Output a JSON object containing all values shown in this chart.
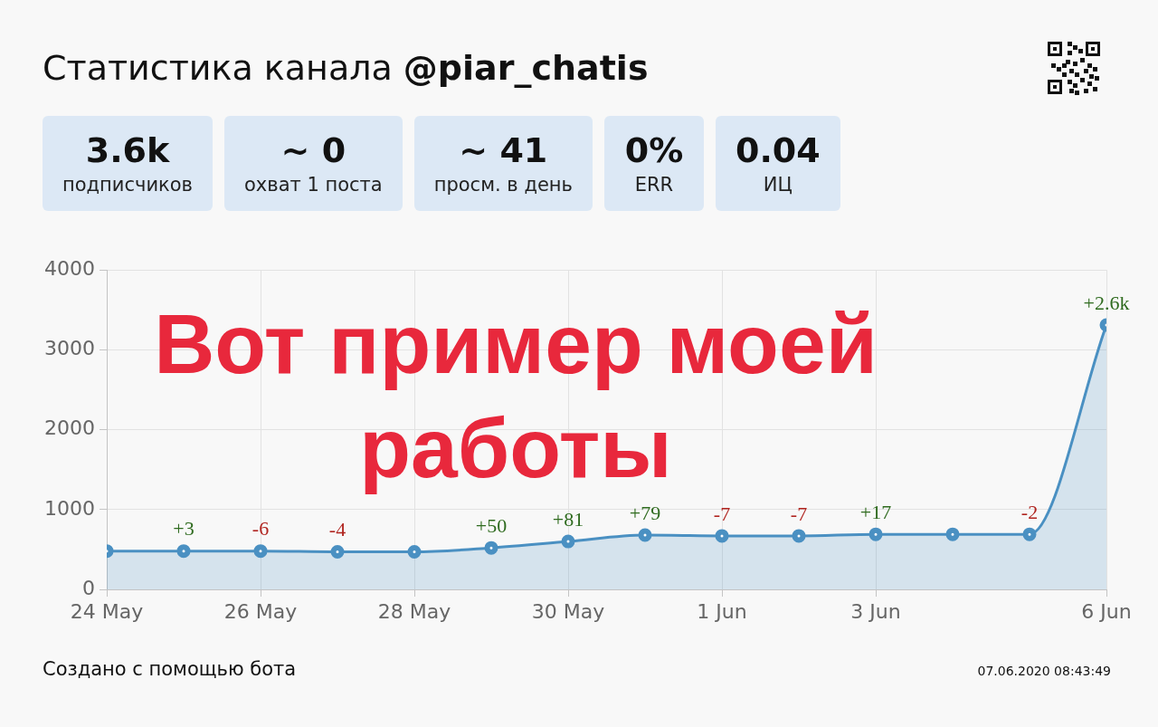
{
  "chart_data": [
    {
      "type": "other",
      "title": "Статистика канала @piar_chatis",
      "annotations": [
        "3.6k",
        "подписчиков",
        "~ 0",
        "охват 1 поста",
        "~ 41",
        "просм. в день",
        "0%",
        "ERR",
        "0.04",
        "ИЦ"
      ]
    },
    {
      "type": "area",
      "x": [
        "2020-05-24",
        "2020-05-25",
        "2020-05-26",
        "2020-05-27",
        "2020-05-28",
        "2020-05-29",
        "2020-05-30",
        "2020-05-31",
        "2020-06-01",
        "2020-06-02",
        "2020-06-03",
        "2020-06-04",
        "2020-06-05",
        "2020-06-06"
      ],
      "values": [
        480,
        480,
        480,
        470,
        470,
        520,
        600,
        680,
        670,
        670,
        690,
        690,
        690,
        3310
      ],
      "color": "#4a90c2",
      "marker": "circle",
      "grid": true,
      "xlim": [
        "2020-05-24",
        "2020-06-06"
      ],
      "xticks": [
        {
          "value": "2020-05-24",
          "label": "24 May"
        },
        {
          "value": "2020-05-26",
          "label": "26 May"
        },
        {
          "value": "2020-05-28",
          "label": "28 May"
        },
        {
          "value": "2020-05-30",
          "label": "30 May"
        },
        {
          "value": "2020-06-01",
          "label": "1 Jun"
        },
        {
          "value": "2020-06-03",
          "label": "3 Jun"
        },
        {
          "value": "2020-06-06",
          "label": "6 Jun"
        }
      ],
      "ylim": [
        0,
        4000
      ],
      "yticks": [
        0,
        1000,
        2000,
        3000,
        4000
      ],
      "annotations": [
        "Вот пример моей работы",
        "Создано с помощью бота",
        "07.06.2020 08:43:49",
        {
          "text": "+3",
          "x": "2020-05-25",
          "y": 480
        },
        {
          "text": "-6",
          "x": "2020-05-26",
          "y": 480
        },
        {
          "text": "-4",
          "x": "2020-05-27",
          "y": 470
        },
        {
          "text": "+50",
          "x": "2020-05-29",
          "y": 520
        },
        {
          "text": "+81",
          "x": "2020-05-30",
          "y": 600
        },
        {
          "text": "+79",
          "x": "2020-05-31",
          "y": 680
        },
        {
          "text": "-7",
          "x": "2020-06-01",
          "y": 670
        },
        {
          "text": "-7",
          "x": "2020-06-02",
          "y": 670
        },
        {
          "text": "+17",
          "x": "2020-06-03",
          "y": 690
        },
        {
          "text": "-2",
          "x": "2020-06-05",
          "y": 690
        },
        {
          "text": "+2.6k",
          "x": "2020-06-06",
          "y": 3310
        }
      ]
    }
  ]
}
